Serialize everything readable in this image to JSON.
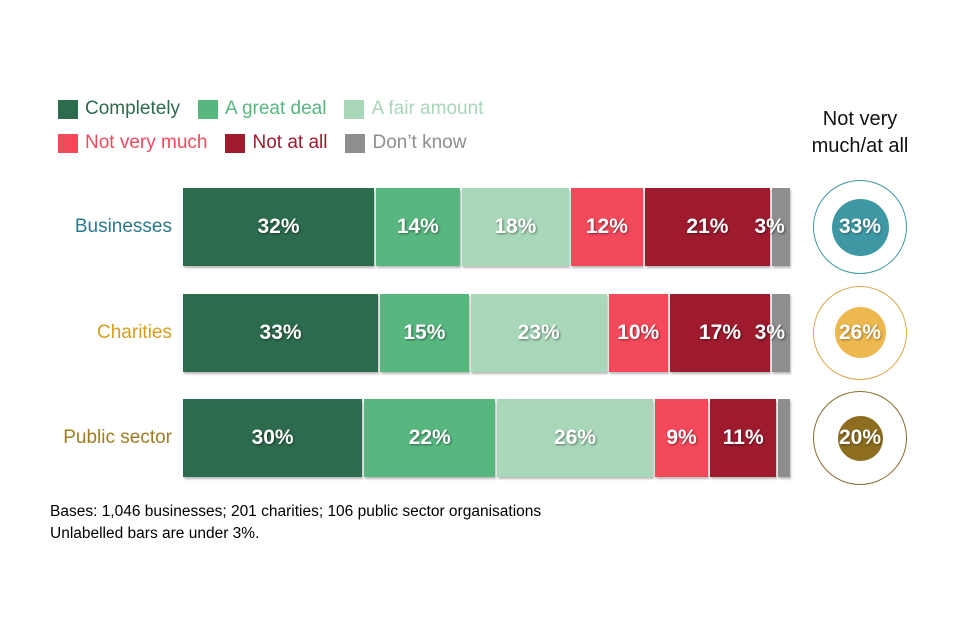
{
  "chart_data": {
    "type": "bar",
    "stacked": true,
    "orientation": "horizontal",
    "xlim": [
      0,
      100
    ],
    "grid": false,
    "legend_position": "top-left",
    "legend": [
      {
        "label": "Completely",
        "color": "#2d6b4d"
      },
      {
        "label": "A great deal",
        "color": "#57b77f"
      },
      {
        "label": "A fair amount",
        "color": "#a8d7b9"
      },
      {
        "label": "Not very much",
        "color": "#f4495b"
      },
      {
        "label": "Not at all",
        "color": "#9e1b2e"
      },
      {
        "label": "Don’t know",
        "color": "#8e8e8e"
      }
    ],
    "categories": [
      "Businesses",
      "Charities",
      "Public sector"
    ],
    "series": [
      {
        "name": "Completely",
        "values": [
          32,
          33,
          30
        ]
      },
      {
        "name": "A great deal",
        "values": [
          14,
          15,
          22
        ]
      },
      {
        "name": "A fair amount",
        "values": [
          18,
          23,
          26
        ]
      },
      {
        "name": "Not very much",
        "values": [
          12,
          10,
          9
        ]
      },
      {
        "name": "Not at all",
        "values": [
          21,
          17,
          11
        ]
      },
      {
        "name": "Don’t know",
        "values": [
          3,
          3,
          2
        ]
      }
    ],
    "rows": [
      {
        "category": "Businesses",
        "category_color": "#2a7a8c",
        "segments": [
          {
            "series": "Completely",
            "value": 32,
            "label": "32%"
          },
          {
            "series": "A great deal",
            "value": 14,
            "label": "14%"
          },
          {
            "series": "A fair amount",
            "value": 18,
            "label": "18%"
          },
          {
            "series": "Not very much",
            "value": 12,
            "label": "12%"
          },
          {
            "series": "Not at all",
            "value": 21,
            "label": "21%"
          },
          {
            "series": "Don’t know",
            "value": 3,
            "label": "3%",
            "label_overflow": true
          }
        ],
        "circle": {
          "label": "33%",
          "value": 33,
          "fill": "#3e98a3",
          "ring": "#3e98a3"
        }
      },
      {
        "category": "Charities",
        "category_color": "#d89d20",
        "segments": [
          {
            "series": "Completely",
            "value": 33,
            "label": "33%"
          },
          {
            "series": "A great deal",
            "value": 15,
            "label": "15%"
          },
          {
            "series": "A fair amount",
            "value": 23,
            "label": "23%"
          },
          {
            "series": "Not very much",
            "value": 10,
            "label": "10%"
          },
          {
            "series": "Not at all",
            "value": 17,
            "label": "17%"
          },
          {
            "series": "Don’t know",
            "value": 3,
            "label": "3%",
            "label_overflow": true
          }
        ],
        "circle": {
          "label": "26%",
          "value": 26,
          "fill": "#edb84f",
          "ring": "#d9a94a"
        }
      },
      {
        "category": "Public sector",
        "category_color": "#9f7c1f",
        "segments": [
          {
            "series": "Completely",
            "value": 30,
            "label": "30%"
          },
          {
            "series": "A great deal",
            "value": 22,
            "label": "22%"
          },
          {
            "series": "A fair amount",
            "value": 26,
            "label": "26%"
          },
          {
            "series": "Not very much",
            "value": 9,
            "label": "9%"
          },
          {
            "series": "Not at all",
            "value": 11,
            "label": "11%"
          },
          {
            "series": "Don’t know",
            "value": 2,
            "label": ""
          }
        ],
        "circle": {
          "label": "20%",
          "value": 20,
          "fill": "#8d6d1f",
          "ring": "#8a6d2d"
        }
      }
    ],
    "circle_column_title": "Not very much/at all",
    "notes": [
      "Bases: 1,046 businesses; 201 charities; 106 public sector organisations",
      "Unlabelled bars are under 3%."
    ]
  }
}
